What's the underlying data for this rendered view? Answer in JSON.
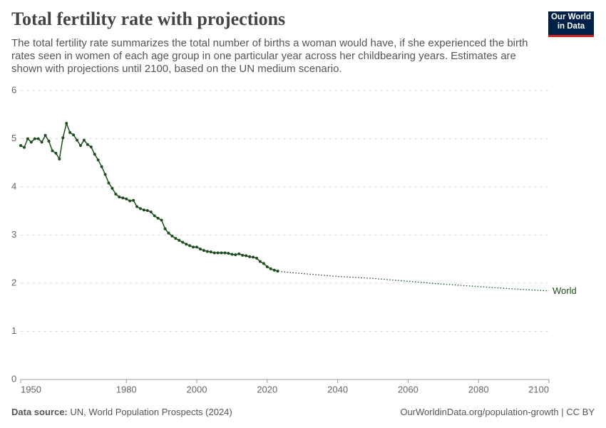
{
  "chart_data": {
    "type": "line",
    "title": "Total fertility rate with projections",
    "subtitle": "The total fertility rate summarizes the total number of births a woman would have, if she experienced the birth rates seen in women of each age group in one particular year across her childbearing years. Estimates are shown with projections until 2100, based on the UN medium scenario.",
    "logo": [
      "Our World",
      "in Data"
    ],
    "source_label": "Data source:",
    "source": "UN, World Population Prospects (2024)",
    "credit": "OurWorldinData.org/population-growth | CC BY",
    "xlim": [
      1950,
      2100
    ],
    "xticks": [
      1950,
      1980,
      2000,
      2020,
      2040,
      2060,
      2080,
      2100
    ],
    "ylim": [
      0,
      6
    ],
    "yticks": [
      0,
      1,
      2,
      3,
      4,
      5,
      6
    ],
    "grid": true,
    "series": [
      {
        "name": "World",
        "color": "#1f4d1f",
        "x": [
          1950,
          1951,
          1952,
          1953,
          1954,
          1955,
          1956,
          1957,
          1958,
          1959,
          1960,
          1961,
          1962,
          1963,
          1964,
          1965,
          1966,
          1967,
          1968,
          1969,
          1970,
          1971,
          1972,
          1973,
          1974,
          1975,
          1976,
          1977,
          1978,
          1979,
          1980,
          1981,
          1982,
          1983,
          1984,
          1985,
          1986,
          1987,
          1988,
          1989,
          1990,
          1991,
          1992,
          1993,
          1994,
          1995,
          1996,
          1997,
          1998,
          1999,
          2000,
          2001,
          2002,
          2003,
          2004,
          2005,
          2006,
          2007,
          2008,
          2009,
          2010,
          2011,
          2012,
          2013,
          2014,
          2015,
          2016,
          2017,
          2018,
          2019,
          2020,
          2021,
          2022,
          2023
        ],
        "values": [
          4.86,
          4.82,
          5.0,
          4.93,
          5.0,
          5.0,
          4.93,
          5.07,
          4.95,
          4.75,
          4.7,
          4.58,
          5.02,
          5.32,
          5.13,
          5.08,
          4.97,
          4.86,
          4.97,
          4.88,
          4.83,
          4.68,
          4.56,
          4.42,
          4.26,
          4.08,
          3.97,
          3.85,
          3.79,
          3.77,
          3.75,
          3.71,
          3.72,
          3.59,
          3.55,
          3.52,
          3.51,
          3.48,
          3.4,
          3.35,
          3.31,
          3.13,
          3.04,
          2.98,
          2.93,
          2.89,
          2.85,
          2.81,
          2.78,
          2.75,
          2.75,
          2.71,
          2.68,
          2.66,
          2.65,
          2.63,
          2.63,
          2.63,
          2.63,
          2.62,
          2.6,
          2.59,
          2.61,
          2.58,
          2.57,
          2.55,
          2.54,
          2.52,
          2.45,
          2.41,
          2.34,
          2.3,
          2.27,
          2.25
        ],
        "projection_x": [
          2024,
          2030,
          2040,
          2050,
          2060,
          2070,
          2080,
          2090,
          2100
        ],
        "projection_values": [
          2.24,
          2.2,
          2.14,
          2.1,
          2.04,
          1.98,
          1.93,
          1.88,
          1.84
        ]
      }
    ]
  }
}
